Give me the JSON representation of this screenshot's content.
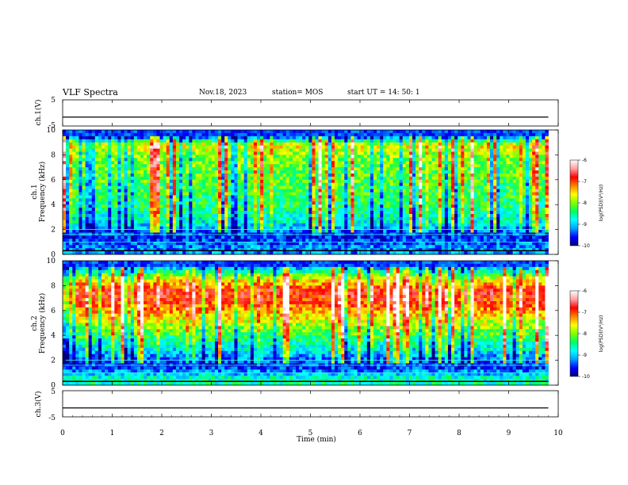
{
  "header": {
    "title": "VLF Spectra",
    "date": "Nov.18, 2023",
    "station": "station= MOS",
    "start": "start UT =  14: 50: 1"
  },
  "panels": {
    "ch1v": {
      "ylabel": "ch.1(V)",
      "ticks": [
        "5",
        "-5"
      ]
    },
    "ch1": {
      "ylabel_top": "ch.1",
      "ylabel": "Frequency (kHz)"
    },
    "ch2": {
      "ylabel_top": "ch.2",
      "ylabel": "Frequency (kHz)"
    },
    "ch3v": {
      "ylabel": "ch.3(V)",
      "ticks": [
        "5",
        "-5"
      ]
    }
  },
  "colorbar": {
    "label": "log(PSD)(V²/Hz)",
    "ticks": [
      "-6",
      "-7",
      "-8",
      "-9",
      "-10"
    ],
    "colors": [
      "#000080",
      "#0000ff",
      "#00a0ff",
      "#00ffff",
      "#00ff60",
      "#80ff00",
      "#ffff00",
      "#ff8000",
      "#ff0000",
      "#ffa0a0",
      "#ffffff"
    ]
  },
  "chart_data": {
    "type": "heatmap",
    "xlabel": "Time (min)",
    "xlim": [
      0,
      10
    ],
    "x_ticks": [
      "0",
      "1",
      "2",
      "3",
      "4",
      "5",
      "6",
      "7",
      "8",
      "9",
      "10"
    ],
    "data_end_min": 9.8,
    "spectrograms": [
      {
        "channel": "ch.1",
        "ylim": [
          0,
          10
        ],
        "y_ticks": [
          "0",
          "2",
          "4",
          "6",
          "8",
          "10"
        ],
        "clim": [
          -10,
          -6
        ],
        "background_level_by_freq": [
          {
            "f": 0.5,
            "v": -9.2
          },
          {
            "f": 1.5,
            "v": -9.6
          },
          {
            "f": 2.5,
            "v": -8.8
          },
          {
            "f": 4,
            "v": -8.4
          },
          {
            "f": 6,
            "v": -8.2
          },
          {
            "f": 8,
            "v": -8.0
          },
          {
            "f": 8.8,
            "v": -7.6
          },
          {
            "f": 9.5,
            "v": -9.6
          }
        ]
      },
      {
        "channel": "ch.2",
        "ylim": [
          0,
          10
        ],
        "y_ticks": [
          "0",
          "2",
          "4",
          "6",
          "8",
          "10"
        ],
        "clim": [
          -10,
          -6
        ],
        "background_level_by_freq": [
          {
            "f": 0.5,
            "v": -8.6
          },
          {
            "f": 1.5,
            "v": -9.6
          },
          {
            "f": 3,
            "v": -8.8
          },
          {
            "f": 5,
            "v": -7.8
          },
          {
            "f": 6.5,
            "v": -7.0
          },
          {
            "f": 7.5,
            "v": -6.8
          },
          {
            "f": 8.5,
            "v": -7.6
          },
          {
            "f": 9.5,
            "v": -9.2
          }
        ]
      }
    ],
    "waveforms": [
      {
        "channel": "ch.1(V)",
        "ylim": [
          -5,
          5
        ],
        "level": -1.6
      },
      {
        "channel": "ch.3(V)",
        "ylim": [
          -5,
          5
        ],
        "level": -1.6
      }
    ]
  }
}
